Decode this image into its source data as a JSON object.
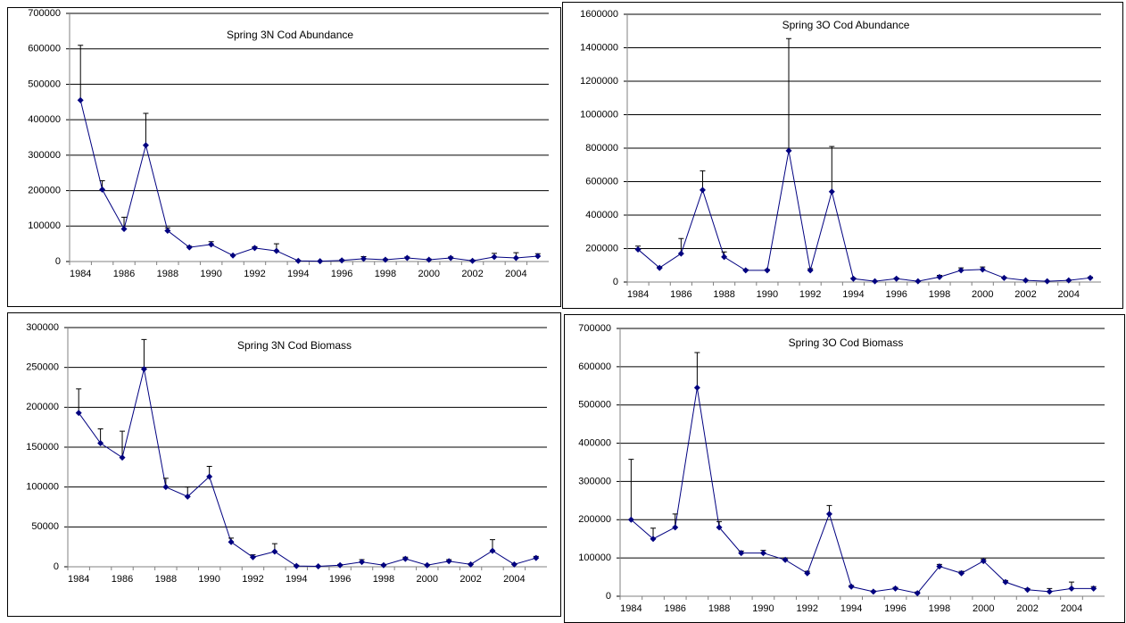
{
  "chart_data": [
    {
      "type": "line",
      "title": "Spring 3N Cod Abundance",
      "categories": [
        "1984",
        null,
        "1986",
        null,
        "1988",
        null,
        "1990",
        null,
        "1992",
        null,
        "1994",
        null,
        "1996",
        null,
        "1998",
        null,
        "2000",
        null,
        "2002",
        null,
        "2004",
        null
      ],
      "series": [
        {
          "color": "#000080",
          "values": [
            455000,
            203000,
            92000,
            328000,
            87000,
            40000,
            48000,
            17000,
            38000,
            30000,
            2000,
            1000,
            3000,
            8000,
            5000,
            10000,
            5000,
            10000,
            2000,
            13000,
            10000,
            15000
          ],
          "errors": [
            155000,
            25000,
            33000,
            90000,
            8000,
            3000,
            8000,
            2000,
            4000,
            20000,
            1000,
            500,
            2000,
            6000,
            2000,
            3000,
            2000,
            3000,
            2000,
            10000,
            15000,
            7000
          ]
        }
      ],
      "ylim": [
        0,
        700000
      ],
      "yticks": [
        0,
        100000,
        200000,
        300000,
        400000,
        500000,
        600000,
        700000
      ],
      "grid": true
    },
    {
      "type": "line",
      "title": "Spring 3O Cod Abundance",
      "categories": [
        "1984",
        null,
        "1986",
        null,
        "1988",
        null,
        "1990",
        null,
        "1992",
        null,
        "1994",
        null,
        "1996",
        null,
        "1998",
        null,
        "2000",
        null,
        "2002",
        null,
        "2004",
        null
      ],
      "series": [
        {
          "color": "#000080",
          "values": [
            195000,
            85000,
            170000,
            550000,
            150000,
            70000,
            70000,
            785000,
            70000,
            540000,
            20000,
            5000,
            20000,
            5000,
            30000,
            70000,
            75000,
            25000,
            10000,
            5000,
            10000,
            25000
          ],
          "errors": [
            20000,
            5000,
            90000,
            115000,
            30000,
            5000,
            5000,
            670000,
            10000,
            270000,
            5000,
            2000,
            5000,
            2000,
            10000,
            15000,
            15000,
            5000,
            3000,
            2000,
            3000,
            5000
          ]
        }
      ],
      "ylim": [
        0,
        1600000
      ],
      "yticks": [
        0,
        200000,
        400000,
        600000,
        800000,
        1000000,
        1200000,
        1400000,
        1600000
      ],
      "grid": true
    },
    {
      "type": "line",
      "title": "Spring 3N Cod Biomass",
      "categories": [
        "1984",
        null,
        "1986",
        null,
        "1988",
        null,
        "1990",
        null,
        "1992",
        null,
        "1994",
        null,
        "1996",
        null,
        "1998",
        null,
        "2000",
        null,
        "2002",
        null,
        "2004",
        null
      ],
      "series": [
        {
          "color": "#000080",
          "values": [
            193000,
            155000,
            137000,
            248000,
            100000,
            88000,
            113000,
            31000,
            12000,
            19000,
            1000,
            500,
            2000,
            6000,
            2000,
            10000,
            2000,
            7000,
            3000,
            20000,
            3000,
            11000
          ],
          "errors": [
            30000,
            18000,
            33000,
            37000,
            11000,
            12000,
            13000,
            5000,
            3000,
            10000,
            1000,
            500,
            1000,
            3000,
            1000,
            2000,
            1000,
            2000,
            1000,
            14000,
            1000,
            2000
          ]
        }
      ],
      "ylim": [
        0,
        300000
      ],
      "yticks": [
        0,
        50000,
        100000,
        150000,
        200000,
        250000,
        300000
      ],
      "grid": true
    },
    {
      "type": "line",
      "title": "Spring 3O Cod Biomass",
      "categories": [
        "1984",
        null,
        "1986",
        null,
        "1988",
        null,
        "1990",
        null,
        "1992",
        null,
        "1994",
        null,
        "1996",
        null,
        "1998",
        null,
        "2000",
        null,
        "2002",
        null,
        "2004",
        null
      ],
      "series": [
        {
          "color": "#000080",
          "values": [
            200000,
            150000,
            180000,
            545000,
            180000,
            113000,
            113000,
            95000,
            60000,
            215000,
            25000,
            12000,
            20000,
            8000,
            78000,
            60000,
            92000,
            37000,
            17000,
            12000,
            20000,
            20000
          ],
          "errors": [
            158000,
            28000,
            35000,
            92000,
            15000,
            5000,
            7000,
            5000,
            5000,
            22000,
            3000,
            2000,
            3000,
            3000,
            5000,
            5000,
            5000,
            4000,
            3000,
            8000,
            17000,
            5000
          ]
        }
      ],
      "ylim": [
        0,
        700000
      ],
      "yticks": [
        0,
        100000,
        200000,
        300000,
        400000,
        500000,
        600000,
        700000
      ],
      "grid": true
    }
  ]
}
